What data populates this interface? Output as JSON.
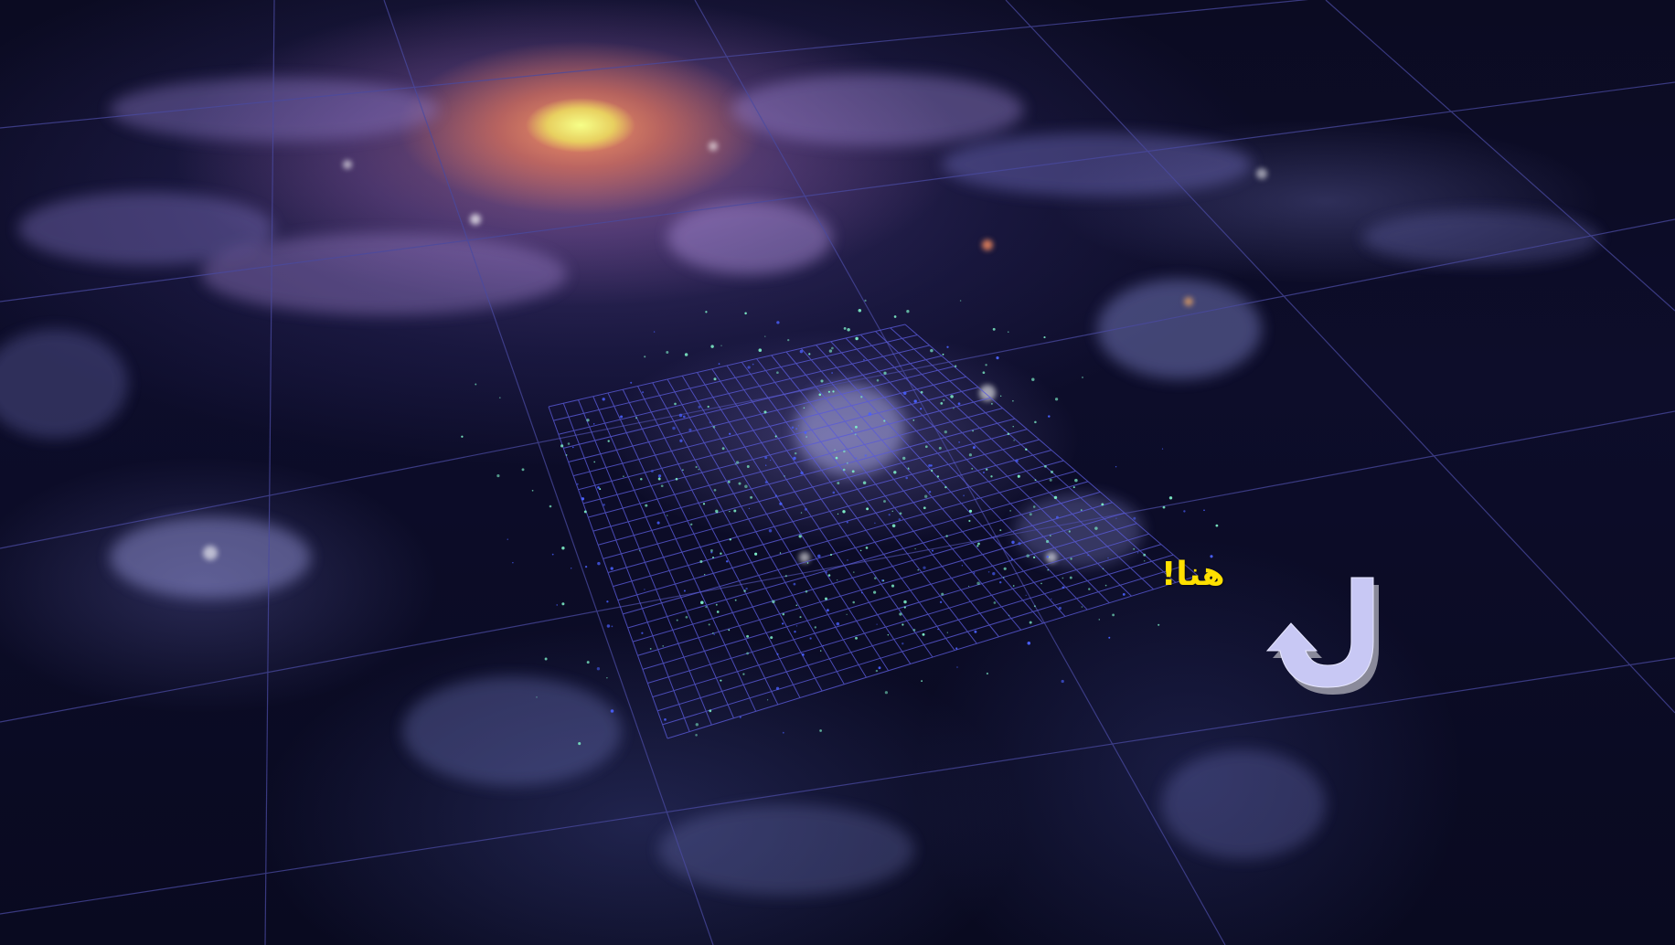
{
  "annotation": {
    "text": "هنا!",
    "color": "#ffe000"
  },
  "arrow": {
    "icon": "u-turn-arrow-icon",
    "fill": "#c8c8f4",
    "shadow": "#8a8a9a"
  },
  "colors": {
    "grid_large": "#4a4aa0",
    "grid_small": "#5a5ad8",
    "galaxy_core": "#f6ff88",
    "galaxy_arms": "#b08ad8",
    "star_dots": "#7ef0c8"
  }
}
